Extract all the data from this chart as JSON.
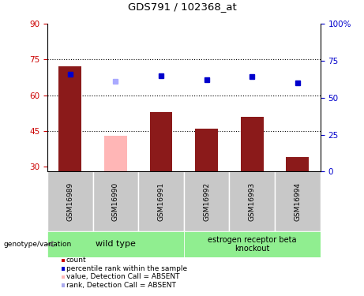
{
  "title": "GDS791 / 102368_at",
  "categories": [
    "GSM16989",
    "GSM16990",
    "GSM16991",
    "GSM16992",
    "GSM16993",
    "GSM16994"
  ],
  "bar_values": [
    72,
    null,
    53,
    46,
    51,
    34
  ],
  "bar_color": "#8b1a1a",
  "absent_bar_values": [
    null,
    43,
    null,
    null,
    null,
    null
  ],
  "absent_bar_color": "#ffb6b6",
  "rank_values": [
    66,
    null,
    65,
    62,
    64,
    60
  ],
  "rank_absent_values": [
    null,
    61,
    null,
    null,
    null,
    null
  ],
  "rank_color": "#0000cc",
  "rank_absent_color": "#aaaaff",
  "ylim_left": [
    28,
    90
  ],
  "ylim_right": [
    0,
    100
  ],
  "yticks_left": [
    30,
    45,
    60,
    75,
    90
  ],
  "yticks_right": [
    0,
    25,
    50,
    75,
    100
  ],
  "yticklabels_right": [
    "0",
    "25",
    "50",
    "75",
    "100%"
  ],
  "hlines": [
    45,
    60,
    75
  ],
  "left_tick_color": "#cc0000",
  "right_tick_color": "#0000cc",
  "wild_type_range": [
    0,
    2
  ],
  "knockout_range": [
    3,
    5
  ],
  "wild_type_label": "wild type",
  "knockout_label": "estrogen receptor beta\nknockout",
  "group_bg_color": "#90ee90",
  "sample_bg_color": "#c8c8c8",
  "legend_items": [
    {
      "color": "#cc0000",
      "label": "count"
    },
    {
      "color": "#0000cc",
      "label": "percentile rank within the sample"
    },
    {
      "color": "#ffb6b6",
      "label": "value, Detection Call = ABSENT"
    },
    {
      "color": "#aaaaee",
      "label": "rank, Detection Call = ABSENT"
    }
  ],
  "genotype_label": "genotype/variation",
  "bar_width": 0.5
}
